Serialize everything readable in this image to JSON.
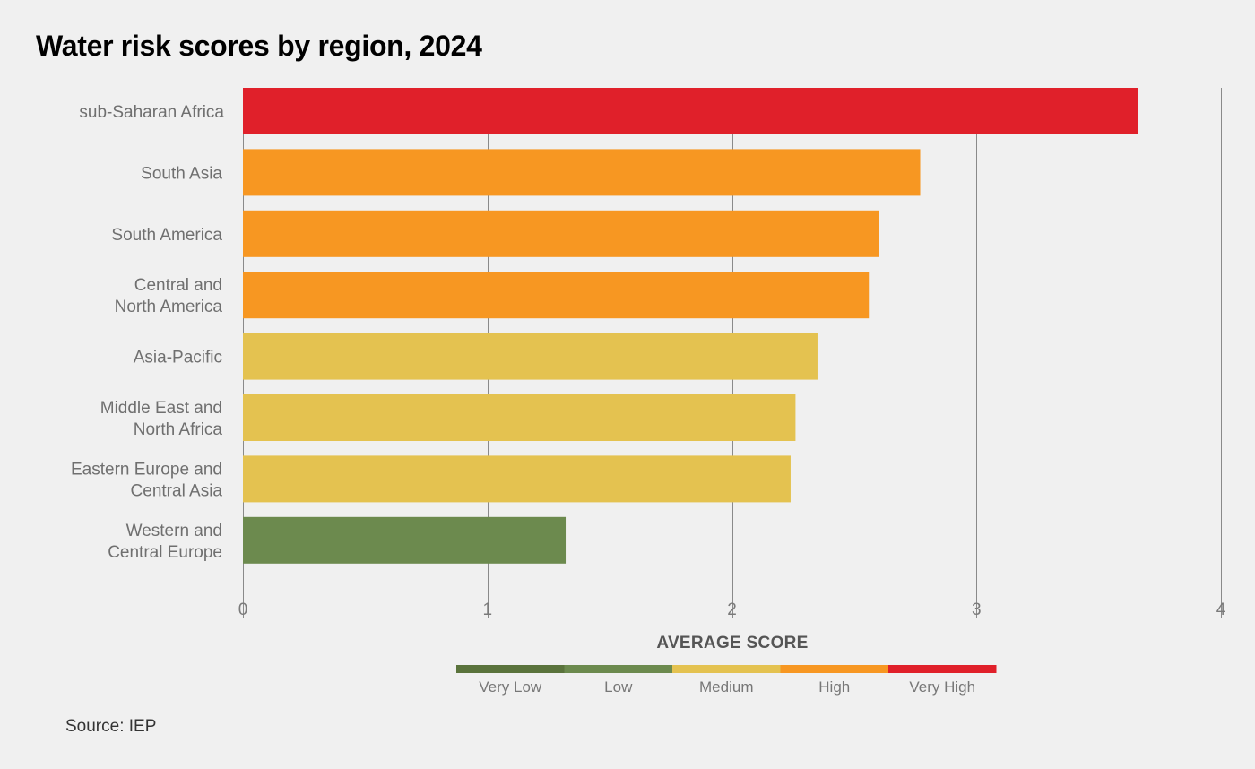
{
  "title": "Water risk scores by region, 2024",
  "source": "Source: IEP",
  "chart_data": {
    "type": "bar",
    "orientation": "horizontal",
    "title": "Water risk scores by region, 2024",
    "xlabel": "AVERAGE SCORE",
    "ylabel": "",
    "xlim": [
      0,
      4
    ],
    "xticks": [
      "0",
      "1",
      "2",
      "3",
      "4"
    ],
    "grid": true,
    "categories": [
      [
        "sub-Saharan Africa"
      ],
      [
        "South Asia"
      ],
      [
        "South America"
      ],
      [
        "Central and",
        "North America"
      ],
      [
        "Asia-Pacific"
      ],
      [
        "Middle East and",
        "North Africa"
      ],
      [
        "Eastern Europe and",
        "Central Asia"
      ],
      [
        "Western and",
        "Central Europe"
      ]
    ],
    "values": [
      3.66,
      2.77,
      2.6,
      2.56,
      2.35,
      2.26,
      2.24,
      1.32
    ],
    "bar_levels": [
      "Very High",
      "High",
      "High",
      "High",
      "Medium",
      "Medium",
      "Medium",
      "Low"
    ],
    "legend": {
      "placement": "bottom-center",
      "items": [
        {
          "label": "Very Low",
          "color": "#5a733c"
        },
        {
          "label": "Low",
          "color": "#6c8a4e"
        },
        {
          "label": "Medium",
          "color": "#e4c250"
        },
        {
          "label": "High",
          "color": "#f79722"
        },
        {
          "label": "Very High",
          "color": "#e0202a"
        }
      ]
    }
  }
}
